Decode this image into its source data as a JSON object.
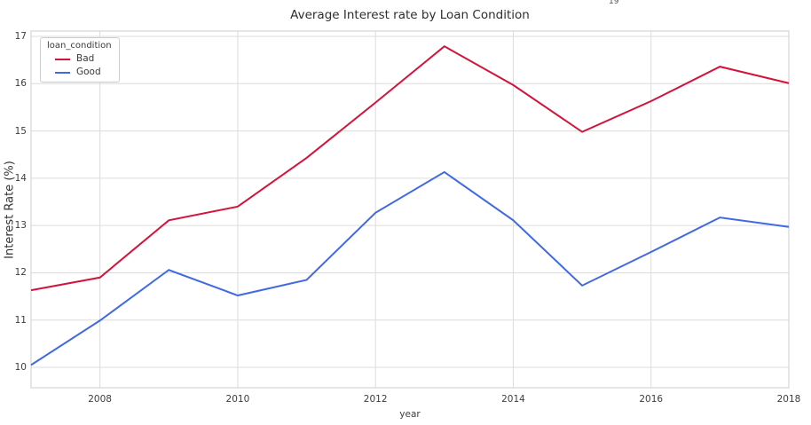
{
  "stray_text": "19",
  "chart_data": {
    "type": "line",
    "title": "Average Interest rate by Loan Condition",
    "xlabel": "year",
    "ylabel": "Interest Rate (%)",
    "x": [
      2007,
      2008,
      2009,
      2010,
      2011,
      2012,
      2013,
      2014,
      2015,
      2016,
      2017,
      2018
    ],
    "series": [
      {
        "name": "Bad",
        "color": "#D2143C",
        "values": [
          11.63,
          11.9,
          13.11,
          13.4,
          14.43,
          15.6,
          16.79,
          15.97,
          14.98,
          15.63,
          16.36,
          16.01
        ]
      },
      {
        "name": "Good",
        "color": "#4169E1",
        "values": [
          10.05,
          10.99,
          12.06,
          11.52,
          11.85,
          13.27,
          14.13,
          13.11,
          11.73,
          12.44,
          13.17,
          12.97
        ]
      }
    ],
    "legend": {
      "title": "loan_condition",
      "position": "upper left"
    },
    "xlim": [
      2007,
      2018
    ],
    "ylim": [
      9.57,
      17.11
    ],
    "yticks": [
      10,
      11,
      12,
      13,
      14,
      15,
      16,
      17
    ],
    "xticks": [
      2008,
      2010,
      2012,
      2014,
      2016,
      2018
    ],
    "grid": true
  },
  "style": {
    "grid_color": "#dcdcdc",
    "spine_color": "#cccccc",
    "background": "#ffffff"
  }
}
